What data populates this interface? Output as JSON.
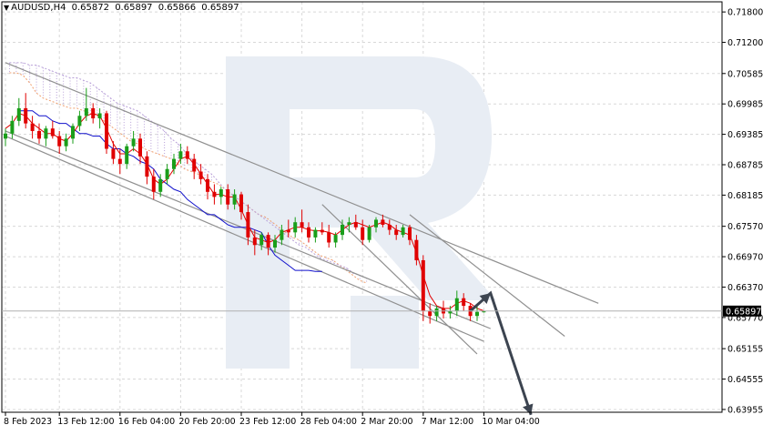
{
  "header": {
    "symbol": "AUDUSD,H4",
    "open": "0.65872",
    "high": "0.65897",
    "low": "0.65866",
    "close": "0.65897"
  },
  "current_price_label": "0.65897",
  "colors": {
    "bull_candle": "#1a9e1a",
    "bear_candle": "#e00000",
    "kijun": "#1010cc",
    "tenkan": "#e00000",
    "cloud_span_a": "#f0a070",
    "cloud_span_b": "#b8a0d8",
    "channel": "#909090",
    "forecast_arrow": "#3c4450",
    "watermark": "#e8edf4",
    "grid": "#d8d8d8"
  },
  "watermark_icon": "broker-logo-R",
  "chart_data": {
    "type": "candlestick",
    "timeframe": "H4",
    "y_axis": {
      "ticks": [
        "0.71800",
        "0.71200",
        "0.70585",
        "0.69985",
        "0.69385",
        "0.68785",
        "0.68185",
        "0.67570",
        "0.66970",
        "0.66370",
        "0.65770",
        "0.65155",
        "0.64555",
        "0.63955"
      ],
      "range": [
        0.639,
        0.72
      ]
    },
    "x_axis": {
      "ticks": [
        "8 Feb 2023",
        "13 Feb 12:00",
        "16 Feb 04:00",
        "20 Feb 20:00",
        "23 Feb 12:00",
        "28 Feb 04:00",
        "2 Mar 20:00",
        "7 Mar 12:00",
        "10 Mar 04:00"
      ]
    },
    "grid": true,
    "candles": [
      [
        0.693,
        0.695,
        0.6915,
        0.694
      ],
      [
        0.694,
        0.6975,
        0.693,
        0.6965
      ],
      [
        0.6965,
        0.701,
        0.6955,
        0.699
      ],
      [
        0.699,
        0.702,
        0.695,
        0.696
      ],
      [
        0.696,
        0.6975,
        0.693,
        0.6945
      ],
      [
        0.6945,
        0.696,
        0.692,
        0.693
      ],
      [
        0.693,
        0.6955,
        0.6915,
        0.695
      ],
      [
        0.695,
        0.6965,
        0.693,
        0.6935
      ],
      [
        0.6935,
        0.6945,
        0.69,
        0.6915
      ],
      [
        0.6915,
        0.694,
        0.6905,
        0.693
      ],
      [
        0.693,
        0.696,
        0.692,
        0.6955
      ],
      [
        0.6955,
        0.6985,
        0.6945,
        0.6975
      ],
      [
        0.6975,
        0.703,
        0.6965,
        0.699
      ],
      [
        0.699,
        0.7,
        0.696,
        0.697
      ],
      [
        0.697,
        0.699,
        0.695,
        0.698
      ],
      [
        0.698,
        0.6985,
        0.69,
        0.691
      ],
      [
        0.691,
        0.6925,
        0.688,
        0.689
      ],
      [
        0.689,
        0.691,
        0.686,
        0.688
      ],
      [
        0.688,
        0.692,
        0.687,
        0.6915
      ],
      [
        0.6915,
        0.6945,
        0.6905,
        0.693
      ],
      [
        0.693,
        0.694,
        0.688,
        0.6895
      ],
      [
        0.6895,
        0.6905,
        0.684,
        0.6855
      ],
      [
        0.6855,
        0.687,
        0.681,
        0.6825
      ],
      [
        0.6825,
        0.686,
        0.6815,
        0.685
      ],
      [
        0.685,
        0.688,
        0.684,
        0.687
      ],
      [
        0.687,
        0.69,
        0.686,
        0.689
      ],
      [
        0.689,
        0.692,
        0.688,
        0.6905
      ],
      [
        0.6905,
        0.6915,
        0.688,
        0.689
      ],
      [
        0.689,
        0.69,
        0.685,
        0.6865
      ],
      [
        0.6865,
        0.688,
        0.684,
        0.685
      ],
      [
        0.685,
        0.686,
        0.681,
        0.6825
      ],
      [
        0.6825,
        0.684,
        0.68,
        0.6815
      ],
      [
        0.6815,
        0.6835,
        0.68,
        0.683
      ],
      [
        0.683,
        0.684,
        0.679,
        0.68
      ],
      [
        0.68,
        0.683,
        0.679,
        0.682
      ],
      [
        0.682,
        0.6825,
        0.677,
        0.6785
      ],
      [
        0.6785,
        0.68,
        0.672,
        0.6735
      ],
      [
        0.6735,
        0.675,
        0.67,
        0.672
      ],
      [
        0.672,
        0.6745,
        0.671,
        0.674
      ],
      [
        0.674,
        0.6745,
        0.67,
        0.6715
      ],
      [
        0.6715,
        0.674,
        0.6705,
        0.673
      ],
      [
        0.673,
        0.676,
        0.672,
        0.675
      ],
      [
        0.675,
        0.677,
        0.6735,
        0.6745
      ],
      [
        0.6745,
        0.6775,
        0.6735,
        0.6765
      ],
      [
        0.6765,
        0.679,
        0.6745,
        0.6755
      ],
      [
        0.6755,
        0.6765,
        0.6725,
        0.6735
      ],
      [
        0.6735,
        0.6755,
        0.6725,
        0.675
      ],
      [
        0.675,
        0.6765,
        0.674,
        0.6745
      ],
      [
        0.6745,
        0.676,
        0.6715,
        0.6725
      ],
      [
        0.6725,
        0.6745,
        0.6715,
        0.674
      ],
      [
        0.674,
        0.677,
        0.673,
        0.676
      ],
      [
        0.676,
        0.6775,
        0.6745,
        0.6765
      ],
      [
        0.6765,
        0.678,
        0.675,
        0.6755
      ],
      [
        0.6755,
        0.677,
        0.672,
        0.673
      ],
      [
        0.673,
        0.676,
        0.6725,
        0.6755
      ],
      [
        0.6755,
        0.6775,
        0.6745,
        0.677
      ],
      [
        0.677,
        0.678,
        0.6755,
        0.676
      ],
      [
        0.676,
        0.677,
        0.674,
        0.675
      ],
      [
        0.675,
        0.676,
        0.673,
        0.674
      ],
      [
        0.674,
        0.676,
        0.6735,
        0.6755
      ],
      [
        0.6755,
        0.676,
        0.672,
        0.673
      ],
      [
        0.673,
        0.674,
        0.668,
        0.669
      ],
      [
        0.669,
        0.67,
        0.657,
        0.659
      ],
      [
        0.659,
        0.6605,
        0.6565,
        0.658
      ],
      [
        0.658,
        0.66,
        0.657,
        0.6595
      ],
      [
        0.6595,
        0.661,
        0.6575,
        0.6585
      ],
      [
        0.6585,
        0.66,
        0.6575,
        0.659
      ],
      [
        0.659,
        0.663,
        0.658,
        0.6615
      ],
      [
        0.6615,
        0.6625,
        0.659,
        0.66
      ],
      [
        0.66,
        0.6605,
        0.657,
        0.658
      ],
      [
        0.658,
        0.66,
        0.657,
        0.6588
      ],
      [
        0.65872,
        0.65897,
        0.65866,
        0.65897
      ]
    ],
    "kijun_sen": [
      0.6985,
      0.6985,
      0.6985,
      0.6975,
      0.6975,
      0.6965,
      0.696,
      0.696,
      0.695,
      0.694,
      0.694,
      0.6935,
      0.6935,
      0.692,
      0.691,
      0.691,
      0.69,
      0.6895,
      0.6885,
      0.688,
      0.687,
      0.685,
      0.684,
      0.683,
      0.6825,
      0.681,
      0.68,
      0.679,
      0.678,
      0.678,
      0.677,
      0.676,
      0.6755,
      0.6755,
      0.6755,
      0.675,
      0.6745,
      0.672,
      0.67,
      0.669,
      0.668,
      0.667,
      0.667,
      0.667,
      0.6668,
      0.6668
    ],
    "kijun_start": 2,
    "tenkan_sen": [
      0.695,
      0.696,
      0.698,
      0.6975,
      0.696,
      0.695,
      0.694,
      0.694,
      0.693,
      0.6925,
      0.694,
      0.696,
      0.6975,
      0.698,
      0.6975,
      0.695,
      0.692,
      0.69,
      0.69,
      0.691,
      0.69,
      0.688,
      0.685,
      0.684,
      0.685,
      0.687,
      0.689,
      0.6895,
      0.688,
      0.686,
      0.684,
      0.682,
      0.682,
      0.6815,
      0.6815,
      0.679,
      0.676,
      0.6735,
      0.673,
      0.6725,
      0.673,
      0.6745,
      0.675,
      0.6755,
      0.6755,
      0.675,
      0.6748,
      0.6748,
      0.6745,
      0.674,
      0.675,
      0.676,
      0.6765,
      0.676,
      0.6755,
      0.676,
      0.6765,
      0.676,
      0.675,
      0.6745,
      0.674,
      0.6705,
      0.666,
      0.662,
      0.66,
      0.6595,
      0.6595,
      0.6605,
      0.661,
      0.6605,
      0.6595,
      0.659
    ],
    "senkou_span_a": [
      0.706,
      0.706,
      0.7055,
      0.704,
      0.702,
      0.701,
      0.7005,
      0.7,
      0.6995,
      0.699,
      0.699,
      0.6985,
      0.698,
      0.6975,
      0.6965,
      0.6955,
      0.6945,
      0.6935,
      0.6925,
      0.692,
      0.691,
      0.6905,
      0.69,
      0.6895,
      0.689,
      0.688,
      0.687,
      0.6865,
      0.686,
      0.685,
      0.6845,
      0.684,
      0.683,
      0.682,
      0.681,
      0.68,
      0.679,
      0.678,
      0.6775,
      0.6765,
      0.6755,
      0.6745,
      0.6735,
      0.673,
      0.672,
      0.671,
      0.67,
      0.6695,
      0.669,
      0.668,
      0.667,
      0.666,
      0.665,
      0.6645
    ],
    "senkou_span_b": [
      0.708,
      0.708,
      0.708,
      0.7075,
      0.7075,
      0.707,
      0.7065,
      0.706,
      0.7055,
      0.705,
      0.705,
      0.7045,
      0.704,
      0.703,
      0.702,
      0.701,
      0.7,
      0.6995,
      0.699,
      0.6985,
      0.6975,
      0.6965,
      0.6955,
      0.6945,
      0.693,
      0.692,
      0.6905,
      0.689,
      0.688,
      0.687,
      0.686,
      0.6845,
      0.683,
      0.682,
      0.681,
      0.68,
      0.679,
      0.678,
      0.677,
      0.676,
      0.675,
      0.674,
      0.673,
      0.672,
      0.6715,
      0.6705,
      0.6695,
      0.669,
      0.6685,
      0.668,
      0.6675,
      0.6665,
      0.666,
      0.6655
    ],
    "channel_lines": [
      {
        "from": [
          0,
          0.708
        ],
        "to": [
          88,
          0.6605
        ]
      },
      {
        "from": [
          0,
          0.6935
        ],
        "to": [
          71,
          0.653
        ]
      },
      {
        "from": [
          60,
          0.678
        ],
        "to": [
          83,
          0.654
        ]
      },
      {
        "from": [
          47,
          0.68
        ],
        "to": [
          70,
          0.6505
        ]
      },
      {
        "from": [
          0,
          0.6945
        ],
        "to": [
          72,
          0.6555
        ]
      }
    ],
    "forecast_path": [
      [
        69,
        0.65897
      ],
      [
        72,
        0.6625
      ],
      [
        78,
        0.6385
      ]
    ]
  }
}
